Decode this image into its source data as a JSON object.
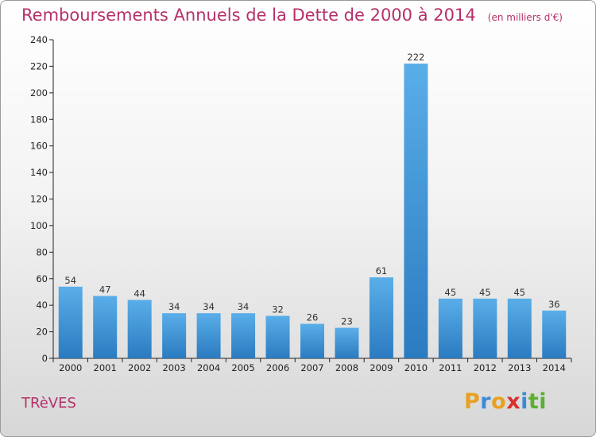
{
  "header": {
    "title": "Remboursements Annuels de la Dette de 2000 à 2014",
    "unit": "(en milliers d'€)"
  },
  "footer": {
    "commune": "TRèVES",
    "logo": {
      "letters": [
        "P",
        "r",
        "o",
        "x",
        "i",
        "t",
        "i"
      ],
      "colors": [
        "#e8a020",
        "#3a8bd6",
        "#e8a020",
        "#d93030",
        "#3a8bd6",
        "#5bb030",
        "#5bb030"
      ]
    }
  },
  "chart_data": {
    "type": "bar",
    "title": "Remboursements Annuels de la Dette de 2000 à 2014",
    "xlabel": "",
    "ylabel": "",
    "categories": [
      "2000",
      "2001",
      "2002",
      "2003",
      "2004",
      "2005",
      "2006",
      "2007",
      "2008",
      "2009",
      "2010",
      "2011",
      "2012",
      "2013",
      "2014"
    ],
    "values": [
      54,
      47,
      44,
      34,
      34,
      34,
      32,
      26,
      23,
      61,
      222,
      45,
      45,
      45,
      36
    ],
    "ylim": [
      0,
      240
    ],
    "yticks": [
      0,
      20,
      40,
      60,
      80,
      100,
      120,
      140,
      160,
      180,
      200,
      220,
      240
    ],
    "grid": false,
    "bar_color_top": "#5aaee8",
    "bar_color_bottom": "#2a7bc0"
  }
}
